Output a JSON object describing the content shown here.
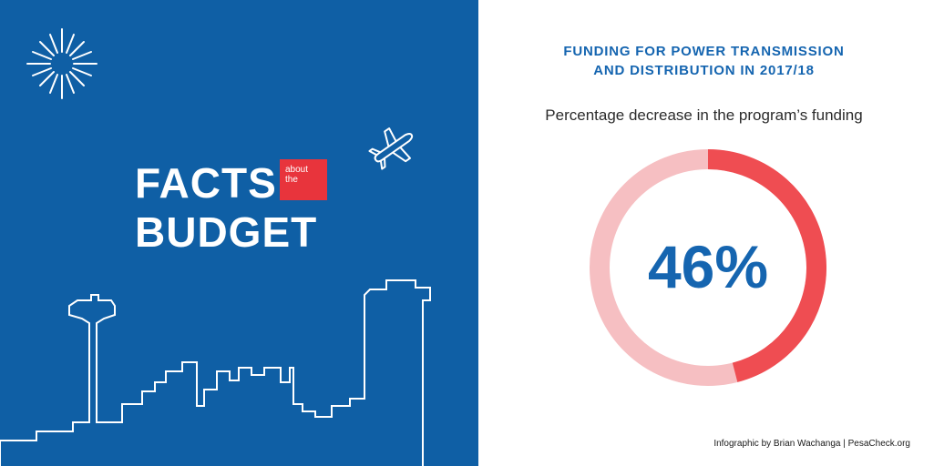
{
  "left": {
    "facts": "FACTS",
    "about_line1": "about",
    "about_line2": "the",
    "budget": "BUDGET"
  },
  "colors": {
    "panel_blue": "#0f5fa5",
    "accent_red": "#e8343c",
    "donut_red": "#ef4d52",
    "donut_pink": "#f6bfc2",
    "title_blue": "#1565b0"
  },
  "chart_data": {
    "type": "pie",
    "title": "FUNDING FOR POWER TRANSMISSION AND DISTRIBUTION IN 2017/18",
    "title_line1": "FUNDING FOR POWER TRANSMISSION",
    "title_line2": "AND DISTRIBUTION IN 2017/18",
    "subtitle": "Percentage decrease in the program’s funding",
    "value": 46,
    "center_label": "46%"
  },
  "credit": "Infographic by Brian Wachanga | PesaCheck.org"
}
